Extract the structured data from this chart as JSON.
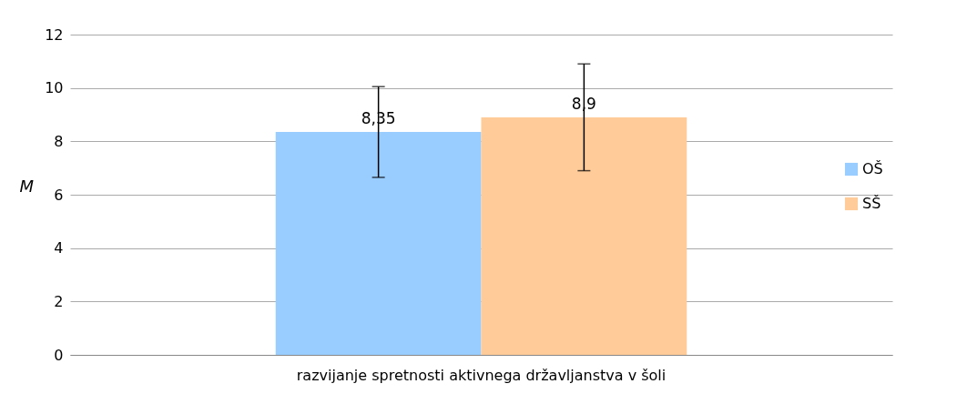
{
  "chart_data": {
    "type": "bar",
    "ylabel": "M",
    "categories": [
      "razvijanje spretnosti aktivnega državljanstva v šoli"
    ],
    "series": [
      {
        "name": "OŠ",
        "color": "#99ccff",
        "values": [
          8.35
        ],
        "errors": [
          1.7
        ],
        "value_labels": [
          "8,35"
        ]
      },
      {
        "name": "SŠ",
        "color": "#ffcc99",
        "values": [
          8.9
        ],
        "errors": [
          2.0
        ],
        "value_labels": [
          "8,9"
        ]
      }
    ],
    "ylim": [
      0,
      12
    ],
    "yticks": [
      0,
      2,
      4,
      6,
      8,
      10,
      12
    ],
    "grid": "y",
    "legend": "right"
  }
}
